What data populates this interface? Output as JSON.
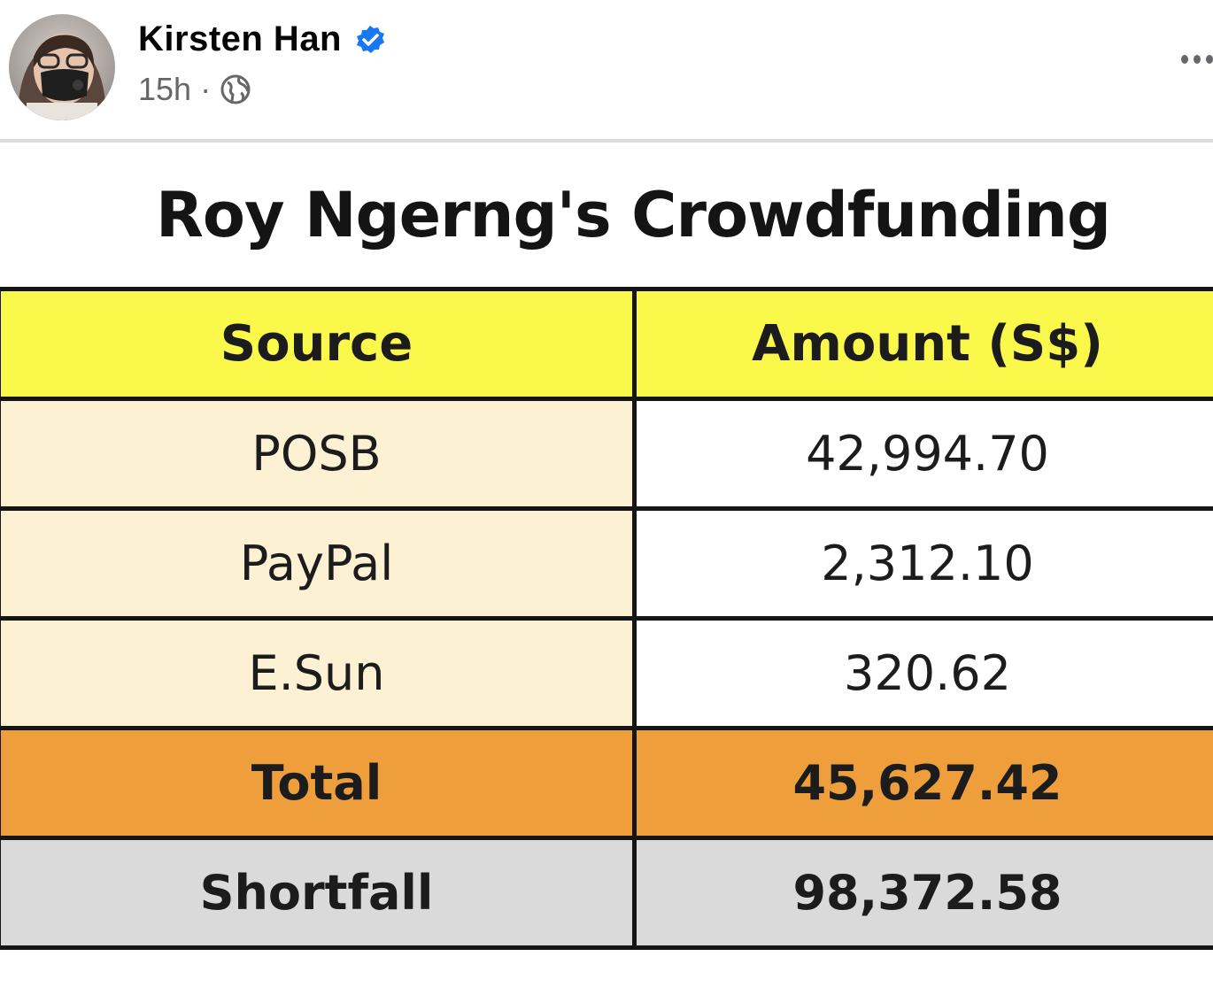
{
  "post": {
    "author": "Kirsten Han",
    "time": "15h",
    "separator": "·",
    "audience_icon": "globe-icon",
    "verified_icon": "verified-badge-icon",
    "more_icon": "more-options-icon"
  },
  "graphic": {
    "title": "Roy Ngerng's Crowdfunding",
    "table": {
      "headers": [
        "Source",
        "Amount (S$)"
      ],
      "rows": [
        {
          "source": "POSB",
          "amount": "42,994.70"
        },
        {
          "source": "PayPal",
          "amount": "2,312.10"
        },
        {
          "source": "E.Sun",
          "amount": "320.62"
        }
      ],
      "total": {
        "label": "Total",
        "amount": "45,627.42"
      },
      "shortfall": {
        "label": "Shortfall",
        "amount": "98,372.58"
      }
    }
  },
  "colors": {
    "header": "#fbf84c",
    "source_cells": "#fdf1d4",
    "total_row": "#ee9f3c",
    "shortfall_row": "#dadada",
    "verified": "#1877f2"
  }
}
